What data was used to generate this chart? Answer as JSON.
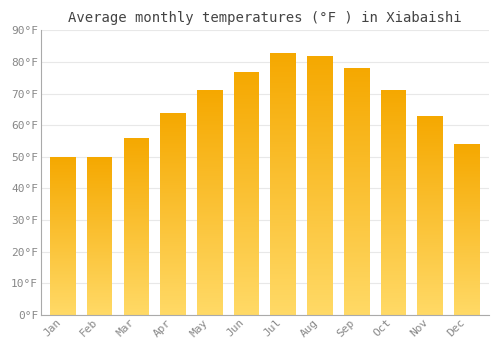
{
  "title": "Average monthly temperatures (°F ) in Xiabaishi",
  "months": [
    "Jan",
    "Feb",
    "Mar",
    "Apr",
    "May",
    "Jun",
    "Jul",
    "Aug",
    "Sep",
    "Oct",
    "Nov",
    "Dec"
  ],
  "values": [
    50,
    50,
    56,
    64,
    71,
    77,
    83,
    82,
    78,
    71,
    63,
    54
  ],
  "bar_color_top": "#F5A800",
  "bar_color_bottom": "#FFD966",
  "background_color": "#FFFFFF",
  "grid_color": "#E8E8E8",
  "text_color": "#888888",
  "title_color": "#444444",
  "ylim": [
    0,
    90
  ],
  "yticks": [
    0,
    10,
    20,
    30,
    40,
    50,
    60,
    70,
    80,
    90
  ],
  "ytick_labels": [
    "0°F",
    "10°F",
    "20°F",
    "30°F",
    "40°F",
    "50°F",
    "60°F",
    "70°F",
    "80°F",
    "90°F"
  ],
  "title_fontsize": 10,
  "tick_fontsize": 8
}
